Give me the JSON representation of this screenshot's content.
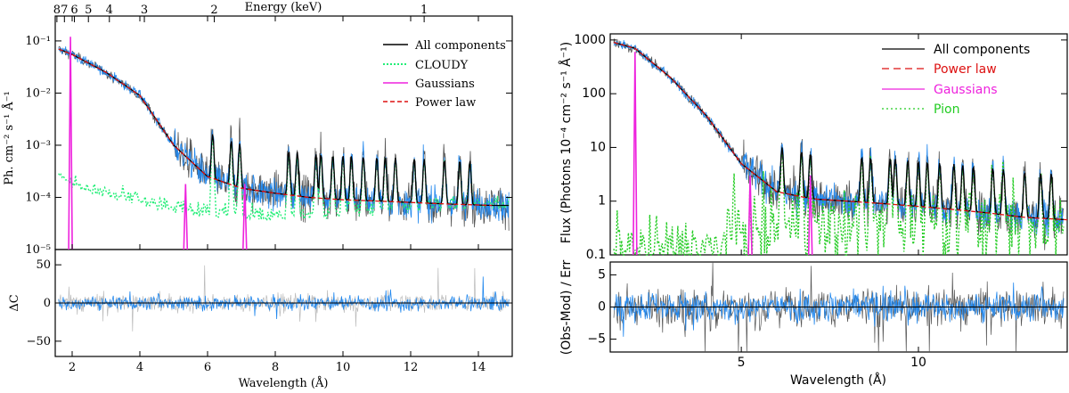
{
  "chart_data": [
    {
      "type": "line",
      "panel": "left",
      "top_axis": {
        "label": "Energy (keV)",
        "ticks": [
          {
            "label": "8",
            "kev": 8
          },
          {
            "label": "7",
            "kev": 7
          },
          {
            "label": "6",
            "kev": 6
          },
          {
            "label": "5",
            "kev": 5
          },
          {
            "label": "4",
            "kev": 4
          },
          {
            "label": "3",
            "kev": 3
          },
          {
            "label": "2",
            "kev": 2
          },
          {
            "label": "1",
            "kev": 1
          }
        ]
      },
      "xlabel": "Wavelength (Å)",
      "xlim": [
        1.5,
        15
      ],
      "xticks": [
        {
          "v": 2,
          "label": "2"
        },
        {
          "v": 4,
          "label": "4"
        },
        {
          "v": 6,
          "label": "6"
        },
        {
          "v": 8,
          "label": "8"
        },
        {
          "v": 10,
          "label": "10"
        },
        {
          "v": 12,
          "label": "12"
        },
        {
          "v": 14,
          "label": "14"
        }
      ],
      "upper": {
        "ylabel": "Ph. cm⁻² s⁻¹ Å⁻¹",
        "yscale": "log",
        "ylim": [
          1e-05,
          0.3
        ],
        "yticks": [
          {
            "v": 1e-05,
            "label": "10⁻⁵"
          },
          {
            "v": 0.0001,
            "label": "10⁻⁴"
          },
          {
            "v": 0.001,
            "label": "10⁻³"
          },
          {
            "v": 0.01,
            "label": "10⁻²"
          },
          {
            "v": 0.1,
            "label": "10⁻¹"
          }
        ],
        "legend_position": "top-right",
        "legend": [
          {
            "name": "All components",
            "color": "#000000",
            "style": "solid"
          },
          {
            "name": "CLOUDY",
            "color": "#22ee77",
            "style": "dotted"
          },
          {
            "name": "Gaussians",
            "color": "#ee22dd",
            "style": "solid"
          },
          {
            "name": "Power law",
            "color": "#dd1111",
            "style": "dashed"
          }
        ],
        "power_law": {
          "x": [
            1.6,
            2,
            3,
            4,
            5,
            6,
            7,
            8,
            9,
            10,
            11,
            12,
            13,
            14.4
          ],
          "y": [
            0.07,
            0.055,
            0.025,
            0.009,
            0.001,
            0.00025,
            0.00015,
            0.00012,
            0.0001,
            9e-05,
            8.5e-05,
            8e-05,
            7.5e-05,
            7e-05
          ]
        },
        "gaussians": [
          {
            "center": 1.95,
            "peak": 0.12
          },
          {
            "center": 5.35,
            "peak": 0.00018
          },
          {
            "center": 7.1,
            "peak": 0.00018
          }
        ],
        "cloudy_continuum": {
          "x": [
            1.6,
            2,
            3,
            4,
            5,
            6,
            8,
            10,
            12,
            14.4
          ],
          "y": [
            0.0002,
            0.00015,
            0.0001,
            7e-05,
            5e-05,
            4e-05,
            3.5e-05,
            4e-05,
            5e-05,
            6e-05
          ]
        }
      },
      "lower": {
        "ylabel": "ΔC",
        "ylim": [
          -70,
          70
        ],
        "yticks": [
          {
            "v": -50,
            "label": "−50"
          },
          {
            "v": 0,
            "label": "0"
          },
          {
            "v": 50,
            "label": "50"
          }
        ]
      }
    },
    {
      "type": "line",
      "panel": "right",
      "xlabel": "Wavelength (Å)",
      "xlim": [
        1.3,
        14.2
      ],
      "xticks": [
        {
          "v": 5,
          "label": "5"
        },
        {
          "v": 10,
          "label": "10"
        }
      ],
      "upper": {
        "ylabel": "Flux (Photons 10⁻⁴ cm⁻² s⁻¹ Å⁻¹)",
        "yscale": "log",
        "ylim": [
          0.1,
          1300
        ],
        "yticks": [
          {
            "v": 0.1,
            "label": "0.1"
          },
          {
            "v": 1,
            "label": "1"
          },
          {
            "v": 10,
            "label": "10"
          },
          {
            "v": 100,
            "label": "100"
          },
          {
            "v": 1000,
            "label": "1000"
          }
        ],
        "legend_position": "top-right",
        "legend": [
          {
            "name": "All components",
            "color": "#000000",
            "style": "solid"
          },
          {
            "name": "Power law",
            "color": "#dd1111",
            "style": "dashed"
          },
          {
            "name": "Gaussians",
            "color": "#ee22dd",
            "style": "solid"
          },
          {
            "name": "Pion",
            "color": "#22cc22",
            "style": "dotted"
          }
        ],
        "power_law": {
          "x": [
            1.4,
            2,
            3,
            4,
            5,
            6,
            7,
            8,
            9,
            10,
            11,
            12,
            13,
            14.2
          ],
          "y": [
            900,
            700,
            200,
            40,
            5,
            1.5,
            1.1,
            1,
            0.9,
            0.8,
            0.7,
            0.6,
            0.5,
            0.45
          ]
        },
        "gaussians": [
          {
            "center": 2.0,
            "peak": 600
          },
          {
            "center": 5.25,
            "peak": 3
          },
          {
            "center": 6.95,
            "peak": 3
          }
        ]
      },
      "lower": {
        "ylabel": "(Obs-Mod) / Err",
        "ylim": [
          -7,
          7
        ],
        "yticks": [
          {
            "v": -5,
            "label": "−5"
          },
          {
            "v": 0,
            "label": "0"
          },
          {
            "v": 5,
            "label": "5"
          }
        ]
      }
    }
  ]
}
